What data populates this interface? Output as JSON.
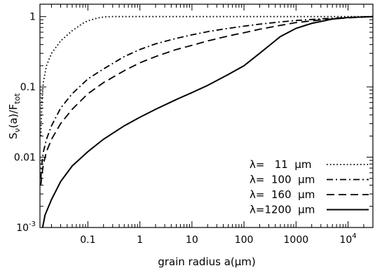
{
  "chart_data": {
    "type": "line",
    "title": "",
    "xlabel": "grain radius a(μm)",
    "ylabel": "Sν(a)/Ftot",
    "xscale": "log",
    "yscale": "log",
    "xlim": [
      0.012,
      30000
    ],
    "ylim": [
      0.001,
      1.5
    ],
    "grid": false,
    "legend_position": "bottom-right",
    "x_ticks": [
      {
        "value": 0.1,
        "label": "0.1"
      },
      {
        "value": 1,
        "label": "1"
      },
      {
        "value": 10,
        "label": "10"
      },
      {
        "value": 100,
        "label": "100"
      },
      {
        "value": 1000,
        "label": "1000"
      },
      {
        "value": 10000,
        "label": "10^4"
      }
    ],
    "y_ticks": [
      {
        "value": 0.001,
        "label": "10^-3"
      },
      {
        "value": 0.01,
        "label": "0.01"
      },
      {
        "value": 0.1,
        "label": "0.1"
      },
      {
        "value": 1,
        "label": "1"
      }
    ],
    "series": [
      {
        "name": "λ=   11  μm",
        "dash": "dotted",
        "x": [
          0.0125,
          0.013,
          0.014,
          0.016,
          0.02,
          0.03,
          0.05,
          0.08,
          0.1,
          0.15,
          0.2,
          0.25,
          0.3,
          1,
          10,
          100,
          1000,
          10000,
          30000
        ],
        "y": [
          0.02,
          0.06,
          0.12,
          0.2,
          0.3,
          0.45,
          0.63,
          0.8,
          0.87,
          0.95,
          0.985,
          0.997,
          1.0,
          1.0,
          1.0,
          1.0,
          1.0,
          1.0,
          1.0
        ]
      },
      {
        "name": "λ=  100  μm",
        "dash": "dash-dot",
        "x": [
          0.0125,
          0.013,
          0.014,
          0.016,
          0.02,
          0.03,
          0.05,
          0.1,
          0.2,
          0.5,
          1,
          2,
          5,
          10,
          20,
          50,
          100,
          200,
          500,
          1000,
          3000,
          10000,
          30000
        ],
        "y": [
          0.005,
          0.008,
          0.012,
          0.018,
          0.028,
          0.05,
          0.08,
          0.13,
          0.18,
          0.27,
          0.34,
          0.41,
          0.49,
          0.55,
          0.61,
          0.68,
          0.73,
          0.78,
          0.84,
          0.88,
          0.93,
          0.97,
          1.0
        ]
      },
      {
        "name": "λ=  160  μm",
        "dash": "dashed",
        "x": [
          0.0125,
          0.013,
          0.014,
          0.016,
          0.02,
          0.03,
          0.05,
          0.1,
          0.2,
          0.5,
          1,
          2,
          5,
          10,
          20,
          50,
          100,
          200,
          500,
          1000,
          3000,
          10000,
          30000
        ],
        "y": [
          0.004,
          0.0055,
          0.008,
          0.012,
          0.018,
          0.03,
          0.048,
          0.08,
          0.115,
          0.17,
          0.22,
          0.27,
          0.34,
          0.39,
          0.45,
          0.53,
          0.59,
          0.66,
          0.75,
          0.82,
          0.9,
          0.96,
          1.0
        ]
      },
      {
        "name": "λ=1200  μm",
        "dash": "solid",
        "x": [
          0.0135,
          0.015,
          0.02,
          0.03,
          0.05,
          0.1,
          0.2,
          0.5,
          1,
          2,
          5,
          10,
          20,
          50,
          100,
          200,
          500,
          1000,
          2000,
          5000,
          10000,
          30000
        ],
        "y": [
          0.001,
          0.0015,
          0.0025,
          0.0045,
          0.0075,
          0.012,
          0.018,
          0.028,
          0.037,
          0.048,
          0.066,
          0.083,
          0.105,
          0.15,
          0.2,
          0.3,
          0.52,
          0.68,
          0.8,
          0.92,
          0.97,
          1.0
        ]
      }
    ]
  }
}
